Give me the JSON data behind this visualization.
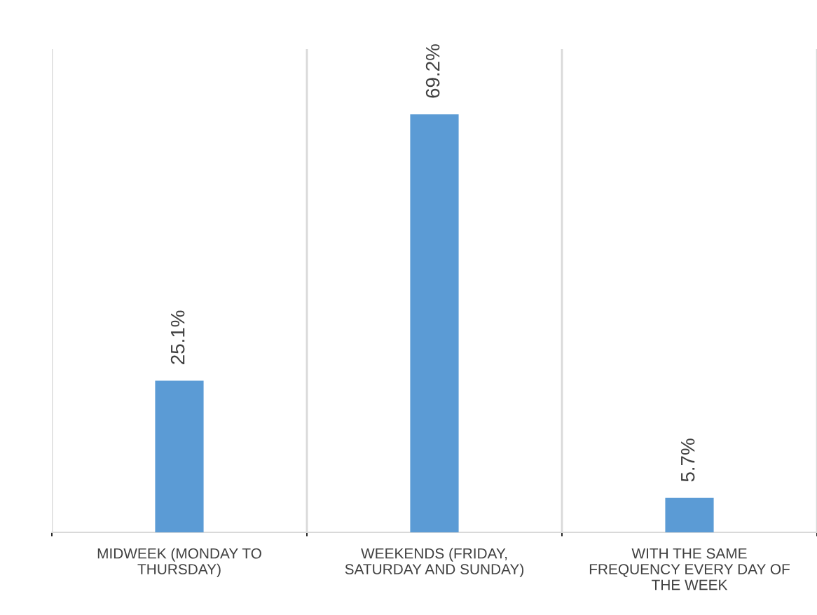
{
  "chart_data": {
    "type": "bar",
    "categories": [
      "MIDWEEK (MONDAY TO THURSDAY)",
      "WEEKENDS (FRIDAY, SATURDAY AND SUNDAY)",
      "WITH THE SAME FREQUENCY EVERY DAY OF THE WEEK"
    ],
    "values": [
      25.1,
      69.2,
      5.7
    ],
    "value_labels": [
      "25.1%",
      "69.2%",
      "5.7%"
    ],
    "color": "#5b9bd5",
    "ylim": [
      0,
      80
    ],
    "grid": "x",
    "tick_labels": "x"
  }
}
